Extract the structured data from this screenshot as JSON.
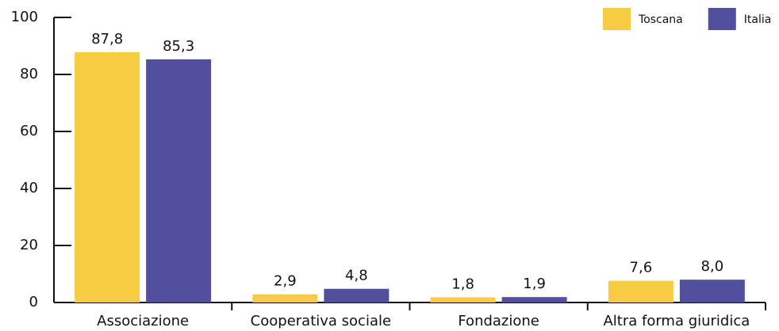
{
  "chart_data": {
    "type": "bar",
    "categories": [
      "Associazione",
      "Cooperativa sociale",
      "Fondazione",
      "Altra forma giuridica"
    ],
    "series": [
      {
        "name": "Toscana",
        "color": "#f8cb45",
        "values": [
          87.8,
          2.9,
          1.8,
          7.6
        ],
        "value_labels": [
          "87,8",
          "2,9",
          "1,8",
          "7,6"
        ]
      },
      {
        "name": "Italia",
        "color": "#52509e",
        "values": [
          85.3,
          4.8,
          1.9,
          8.0
        ],
        "value_labels": [
          "85,3",
          "4,8",
          "1,9",
          "8,0"
        ]
      }
    ],
    "ylim": [
      0,
      100
    ],
    "yticks": [
      0,
      20,
      40,
      60,
      80,
      100
    ],
    "legend": "top-right"
  }
}
